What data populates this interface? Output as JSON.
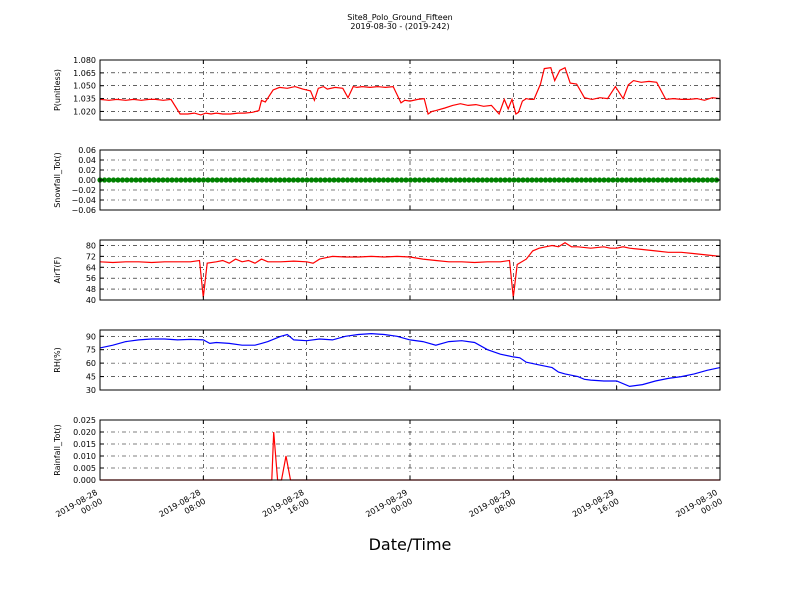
{
  "figure": {
    "title": "Site8_Polo_Ground_Fifteen",
    "subtitle": "2019-08-30 - (2019-242)",
    "xlabel": "Date/Time"
  },
  "chart_data": [
    {
      "type": "line",
      "ylabel": "P(unitless)",
      "ylim": [
        1.01,
        1.08
      ],
      "yticks": [
        1.02,
        1.035,
        1.05,
        1.065,
        1.08
      ],
      "ytick_labels": [
        "1.020",
        "1.035",
        "1.050",
        "1.065",
        "1.080"
      ],
      "color": "#ff0000",
      "grid": true,
      "x": [
        0,
        0.7,
        1.3,
        2,
        2.6,
        3.2,
        3.8,
        4.3,
        4.9,
        5.5,
        6.2,
        6.8,
        7.3,
        7.8,
        8.2,
        8.6,
        9,
        9.5,
        10.1,
        10.7,
        11.2,
        11.8,
        12.3,
        12.5,
        12.8,
        13.4,
        13.9,
        14.5,
        15.1,
        15.7,
        16.3,
        16.6,
        16.9,
        17.3,
        17.6,
        18.2,
        18.8,
        19.2,
        19.6,
        19.9,
        20.3,
        20.9,
        21.5,
        22.1,
        22.7,
        23.3,
        23.6,
        24,
        24.6,
        25.1,
        25.4,
        25.7,
        26,
        26.7,
        27.3,
        27.9,
        28.5,
        29.1,
        29.7,
        30.3,
        30.9,
        31.3,
        31.6,
        31.9,
        32.2,
        32.4,
        32.7,
        33,
        33.3,
        33.6,
        34.1,
        34.4,
        34.9,
        35.2,
        35.6,
        36,
        36.4,
        36.9,
        37.5,
        38.1,
        38.7,
        39.3,
        39.9,
        40.5,
        40.9,
        41.3,
        41.9,
        42.5,
        43.1,
        43.8,
        44.4,
        45,
        45.6,
        46.2,
        46.8,
        47.4,
        48
      ],
      "y": [
        1.034,
        1.033,
        1.034,
        1.033,
        1.034,
        1.033,
        1.034,
        1.034,
        1.033,
        1.034,
        1.017,
        1.017,
        1.018,
        1.016,
        1.018,
        1.017,
        1.018,
        1.017,
        1.017,
        1.018,
        1.018,
        1.019,
        1.021,
        1.033,
        1.031,
        1.045,
        1.048,
        1.047,
        1.049,
        1.046,
        1.044,
        1.033,
        1.047,
        1.049,
        1.046,
        1.048,
        1.047,
        1.036,
        1.049,
        1.048,
        1.049,
        1.048,
        1.049,
        1.048,
        1.049,
        1.03,
        1.033,
        1.032,
        1.034,
        1.035,
        1.017,
        1.02,
        1.021,
        1.024,
        1.027,
        1.029,
        1.027,
        1.028,
        1.026,
        1.027,
        1.017,
        1.034,
        1.023,
        1.034,
        1.017,
        1.019,
        1.032,
        1.035,
        1.034,
        1.034,
        1.052,
        1.07,
        1.071,
        1.056,
        1.068,
        1.071,
        1.053,
        1.052,
        1.036,
        1.034,
        1.036,
        1.035,
        1.049,
        1.035,
        1.051,
        1.056,
        1.054,
        1.055,
        1.054,
        1.034,
        1.035,
        1.034,
        1.034,
        1.035,
        1.033,
        1.036,
        1.035
      ]
    },
    {
      "type": "line",
      "ylabel": "Snowfall_Tot()",
      "ylim": [
        -0.06,
        0.06
      ],
      "yticks": [
        -0.06,
        -0.04,
        -0.02,
        0,
        0.02,
        0.04,
        0.06
      ],
      "ytick_labels": [
        "−0.06",
        "−0.04",
        "−0.02",
        "0.00",
        "0.02",
        "0.04",
        "0.06"
      ],
      "color": "#008000",
      "marker": "dot",
      "grid": true,
      "x": [
        0,
        48
      ],
      "y": [
        0,
        0
      ]
    },
    {
      "type": "line",
      "ylabel": "AirT(F)",
      "ylim": [
        40,
        84
      ],
      "yticks": [
        40,
        48,
        56,
        64,
        72,
        80
      ],
      "ytick_labels": [
        "40",
        "48",
        "56",
        "64",
        "72",
        "80"
      ],
      "color": "#ff0000",
      "grid": true,
      "x": [
        0,
        1,
        2,
        3,
        4,
        5,
        6,
        7,
        7.7,
        8,
        8.3,
        9,
        9.5,
        10,
        10.5,
        11,
        11.5,
        12,
        12.5,
        13,
        14,
        15,
        16,
        16.5,
        17,
        17.5,
        18,
        19,
        20,
        21,
        22,
        23,
        24,
        25,
        26,
        27,
        28,
        29,
        30,
        31,
        31.7,
        32,
        32.3,
        33,
        33.5,
        34,
        34.5,
        35,
        35.5,
        36,
        36.5,
        37,
        38,
        39,
        39.5,
        40,
        40.5,
        41,
        42,
        43,
        44,
        45,
        46,
        47,
        48
      ],
      "y": [
        68,
        67.5,
        68,
        68,
        67.5,
        68,
        68,
        68,
        69,
        42,
        67,
        68,
        69,
        67,
        70,
        68,
        69,
        67,
        70,
        68,
        68,
        68.5,
        68,
        67,
        70,
        71,
        72,
        71.5,
        71.5,
        72,
        71.5,
        72,
        71.5,
        70,
        69,
        68,
        68,
        67.5,
        68,
        68,
        69,
        42,
        66,
        70,
        76,
        78,
        79,
        80,
        79,
        82,
        79,
        79,
        78,
        79,
        78,
        78,
        79,
        78,
        77,
        76,
        75,
        75,
        74,
        73,
        72
      ]
    },
    {
      "type": "line",
      "ylabel": "RH(%)",
      "ylim": [
        30,
        97
      ],
      "yticks": [
        30,
        45,
        60,
        75,
        90
      ],
      "ytick_labels": [
        "30",
        "45",
        "60",
        "75",
        "90"
      ],
      "color": "#0000ff",
      "grid": true,
      "x": [
        0,
        1,
        2,
        3,
        4,
        5,
        6,
        7,
        8,
        8.5,
        9,
        10,
        11,
        12,
        12.5,
        13,
        14,
        14.5,
        15,
        16,
        17,
        18,
        19,
        20,
        21,
        22,
        23,
        24,
        25,
        26,
        27,
        28,
        29,
        30,
        31,
        32,
        32.5,
        33,
        34,
        35,
        35.5,
        36,
        37,
        37.5,
        38,
        39,
        40,
        41,
        42,
        43,
        44,
        45,
        46,
        47,
        48
      ],
      "y": [
        77,
        80,
        84,
        86,
        87,
        87,
        86,
        86.5,
        86,
        82,
        83,
        82,
        80,
        80,
        82,
        84,
        90,
        92,
        86,
        85,
        87,
        86,
        90,
        92,
        93,
        92,
        90,
        86,
        84,
        80,
        84,
        85,
        83,
        75,
        70,
        67,
        66,
        61,
        58,
        55,
        50,
        48,
        45,
        42,
        41,
        40,
        40,
        34,
        36,
        40,
        43,
        45,
        48,
        52,
        55
      ]
    },
    {
      "type": "line",
      "ylabel": "Rainfall_Tot()",
      "ylim": [
        0,
        0.025
      ],
      "yticks": [
        0,
        0.005,
        0.01,
        0.015,
        0.02,
        0.025
      ],
      "ytick_labels": [
        "0.000",
        "0.005",
        "0.010",
        "0.015",
        "0.020",
        "0.025"
      ],
      "color": "#ff0000",
      "grid": true,
      "x": [
        0,
        13.3,
        13.45,
        13.75,
        14.05,
        14.4,
        14.75,
        48
      ],
      "y": [
        0,
        0,
        0.02,
        0,
        0,
        0.01,
        0,
        0
      ]
    }
  ],
  "xaxis": {
    "range": [
      0,
      48
    ],
    "ticks": [
      0,
      8,
      16,
      24,
      32,
      40,
      48
    ],
    "tick_labels": [
      [
        "2019-08-28",
        "00:00"
      ],
      [
        "2019-08-28",
        "08:00"
      ],
      [
        "2019-08-28",
        "16:00"
      ],
      [
        "2019-08-29",
        "00:00"
      ],
      [
        "2019-08-29",
        "08:00"
      ],
      [
        "2019-08-29",
        "16:00"
      ],
      [
        "2019-08-30",
        "00:00"
      ]
    ]
  }
}
